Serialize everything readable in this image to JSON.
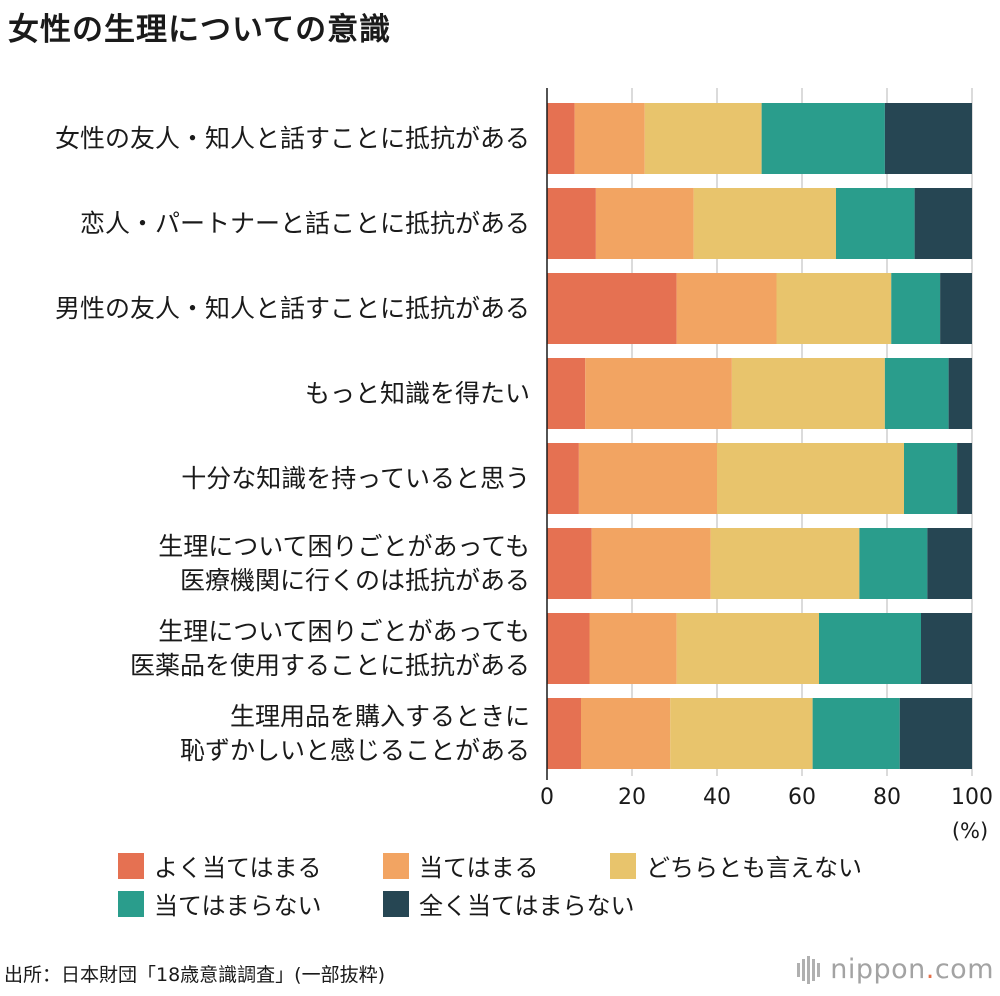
{
  "title": "女性の生理についての意識",
  "chart_data": {
    "type": "bar",
    "orientation": "horizontal",
    "stacked": true,
    "title": "女性の生理についての意識",
    "categories": [
      [
        "女性の友人・知人と話すことに抵抗がある"
      ],
      [
        "恋人・パートナーと話ことに抵抗がある"
      ],
      [
        "男性の友人・知人と話すことに抵抗がある"
      ],
      [
        "もっと知識を得たい"
      ],
      [
        "十分な知識を持っていると思う"
      ],
      [
        "生理について困りごとがあっても",
        "医療機関に行くのは抵抗がある"
      ],
      [
        "生理について困りごとがあっても",
        "医薬品を使用することに抵抗がある"
      ],
      [
        "生理用品を購入するときに",
        "恥ずかしいと感じることがある"
      ]
    ],
    "series": [
      {
        "name": "よく当てはまる",
        "color": "#e57152",
        "values": [
          6.5,
          11.5,
          30.5,
          9.0,
          7.5,
          10.5,
          10.0,
          8.0
        ]
      },
      {
        "name": "当てはまる",
        "color": "#f2a462",
        "values": [
          16.5,
          23.0,
          23.5,
          34.5,
          32.5,
          28.0,
          20.5,
          21.0
        ]
      },
      {
        "name": "どちらとも言えない",
        "color": "#e8c46c",
        "values": [
          27.5,
          33.5,
          27.0,
          36.0,
          44.0,
          35.0,
          33.5,
          33.5
        ]
      },
      {
        "name": "当てはまらない",
        "color": "#2a9d8c",
        "values": [
          29.0,
          18.5,
          11.5,
          15.0,
          12.5,
          16.0,
          24.0,
          20.5
        ]
      },
      {
        "name": "全く当てはまらない",
        "color": "#264653",
        "values": [
          20.5,
          13.5,
          7.5,
          5.5,
          3.5,
          10.5,
          12.0,
          17.0
        ]
      }
    ],
    "xlim": [
      0,
      100
    ],
    "xticks": [
      0,
      20,
      40,
      60,
      80,
      100
    ],
    "xlabel": "(%)",
    "ylabel": "",
    "grid": true,
    "legend": "bottom"
  },
  "source": "出所：日本財団「18歳意識調査」(一部抜粋)",
  "brand": {
    "name": "nippon",
    "dot": ".",
    "tld": "com"
  }
}
